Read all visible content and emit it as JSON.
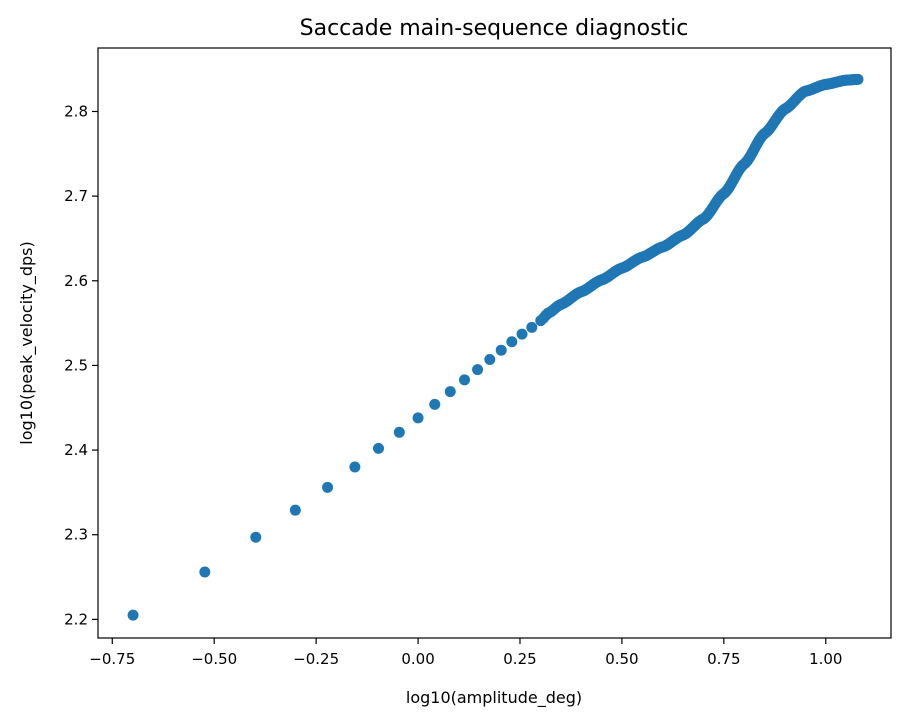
{
  "chart_data": {
    "type": "scatter",
    "title": "Saccade main-sequence diagnostic",
    "xlabel": "log10(amplitude_deg)",
    "ylabel": "log10(peak_velocity_dps)",
    "xlim": [
      -0.785,
      1.16
    ],
    "ylim": [
      2.178,
      2.875
    ],
    "grid": false,
    "legend": "none",
    "marker_color": "#1f77b4",
    "x_ticks": [
      -0.75,
      -0.5,
      -0.25,
      0.0,
      0.25,
      0.5,
      0.75,
      1.0
    ],
    "x_tick_labels": [
      "−0.75",
      "−0.50",
      "−0.25",
      "0.00",
      "0.25",
      "0.50",
      "0.75",
      "1.00"
    ],
    "y_ticks": [
      2.2,
      2.3,
      2.4,
      2.5,
      2.6,
      2.7,
      2.8
    ],
    "y_tick_labels": [
      "2.2",
      "2.3",
      "2.4",
      "2.5",
      "2.6",
      "2.7",
      "2.8"
    ],
    "curve_knots": [
      [
        -0.699,
        2.205
      ],
      [
        -0.523,
        2.256
      ],
      [
        -0.398,
        2.297
      ],
      [
        -0.301,
        2.329
      ],
      [
        -0.222,
        2.356
      ],
      [
        -0.155,
        2.38
      ],
      [
        -0.097,
        2.402
      ],
      [
        -0.046,
        2.421
      ],
      [
        0.0,
        2.438
      ],
      [
        0.041,
        2.454
      ],
      [
        0.079,
        2.469
      ],
      [
        0.114,
        2.483
      ],
      [
        0.146,
        2.495
      ],
      [
        0.176,
        2.507
      ],
      [
        0.204,
        2.518
      ],
      [
        0.23,
        2.528
      ],
      [
        0.255,
        2.537
      ],
      [
        0.279,
        2.545
      ],
      [
        0.301,
        2.553
      ],
      [
        0.32,
        2.562
      ],
      [
        0.35,
        2.572
      ],
      [
        0.4,
        2.587
      ],
      [
        0.45,
        2.601
      ],
      [
        0.5,
        2.615
      ],
      [
        0.55,
        2.628
      ],
      [
        0.6,
        2.64
      ],
      [
        0.65,
        2.654
      ],
      [
        0.7,
        2.673
      ],
      [
        0.75,
        2.703
      ],
      [
        0.8,
        2.738
      ],
      [
        0.85,
        2.774
      ],
      [
        0.9,
        2.803
      ],
      [
        0.95,
        2.824
      ],
      [
        1.0,
        2.832
      ],
      [
        1.05,
        2.837
      ],
      [
        1.079,
        2.838
      ]
    ],
    "dense_from_index": 18
  }
}
